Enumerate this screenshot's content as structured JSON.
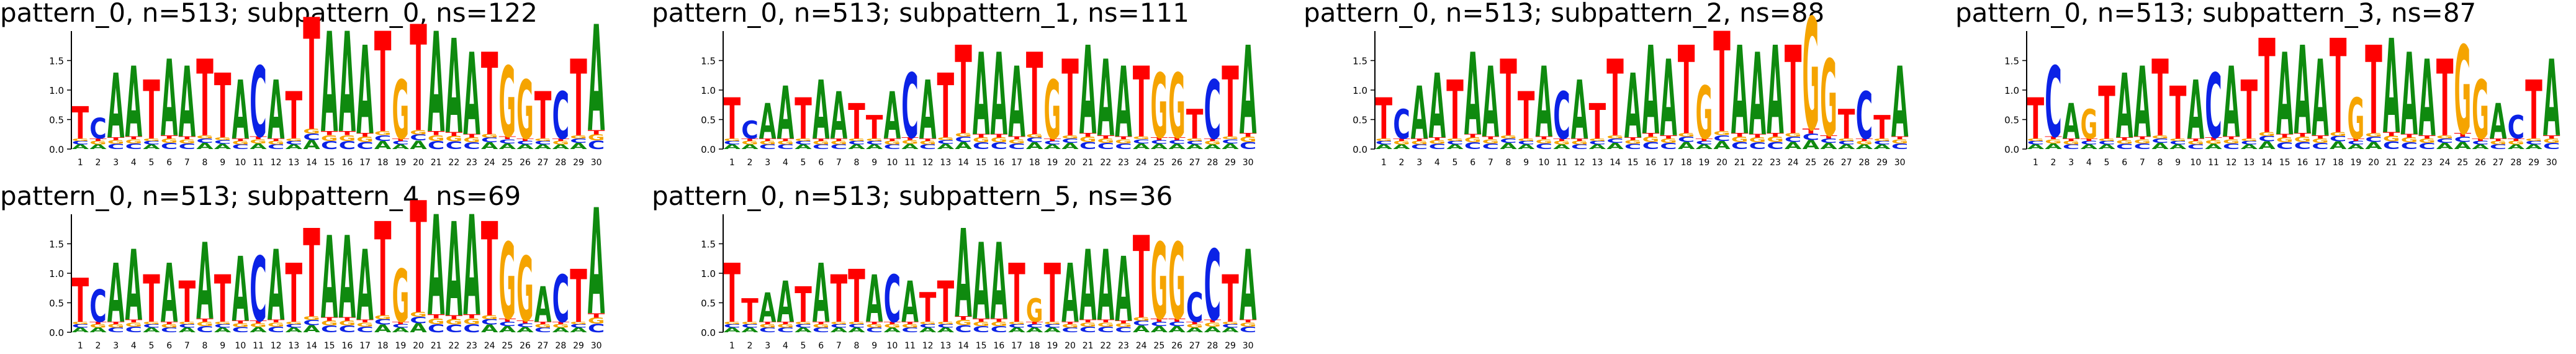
{
  "chart_data": [
    {
      "type": "sequence-logo",
      "title": "pattern_0, n=513; subpattern_0, ns=122",
      "ylim": [
        0,
        2.0
      ],
      "yticks": [
        "0.0",
        "0.5",
        "1.0",
        "1.5"
      ],
      "positions": [
        "1",
        "2",
        "3",
        "4",
        "5",
        "6",
        "7",
        "8",
        "9",
        "10",
        "11",
        "12",
        "13",
        "14",
        "15",
        "16",
        "17",
        "18",
        "19",
        "20",
        "21",
        "22",
        "23",
        "24",
        "25",
        "26",
        "27",
        "28",
        "29",
        "30"
      ],
      "consensus": [
        "T",
        "C",
        "A",
        "A",
        "T",
        "A",
        "A",
        "T",
        "T",
        "A",
        "C",
        "A",
        "T",
        "T",
        "A",
        "A",
        "A",
        "T",
        "G",
        "T",
        "A",
        "A",
        "A",
        "T",
        "G",
        "G",
        "T",
        "C",
        "T",
        "A"
      ],
      "heights": [
        0.55,
        0.35,
        1.1,
        1.2,
        1.0,
        1.3,
        1.2,
        1.3,
        1.1,
        1.0,
        1.2,
        1.0,
        0.8,
        1.9,
        1.7,
        1.7,
        1.5,
        1.7,
        1.0,
        1.8,
        1.7,
        1.6,
        1.4,
        1.4,
        1.2,
        1.0,
        0.8,
        0.8,
        1.3,
        1.8
      ]
    },
    {
      "type": "sequence-logo",
      "title": "pattern_0, n=513; subpattern_1, ns=111",
      "ylim": [
        0,
        2.0
      ],
      "yticks": [
        "0.0",
        "0.5",
        "1.0",
        "1.5"
      ],
      "positions": [
        "1",
        "2",
        "3",
        "4",
        "5",
        "6",
        "7",
        "8",
        "9",
        "10",
        "11",
        "12",
        "13",
        "14",
        "15",
        "16",
        "17",
        "18",
        "19",
        "20",
        "21",
        "22",
        "23",
        "24",
        "25",
        "26",
        "27",
        "28",
        "29",
        "30"
      ],
      "consensus": [
        "T",
        "C",
        "A",
        "A",
        "T",
        "A",
        "A",
        "T",
        "T",
        "A",
        "C",
        "A",
        "T",
        "T",
        "A",
        "A",
        "A",
        "T",
        "G",
        "T",
        "A",
        "A",
        "A",
        "T",
        "G",
        "G",
        "T",
        "C",
        "T",
        "A"
      ],
      "heights": [
        0.7,
        0.3,
        0.6,
        0.9,
        0.7,
        1.0,
        0.8,
        0.6,
        0.4,
        0.8,
        1.1,
        1.0,
        1.1,
        1.5,
        1.4,
        1.4,
        1.2,
        1.4,
        1.0,
        1.3,
        1.5,
        1.3,
        1.2,
        1.2,
        1.1,
        1.1,
        0.5,
        1.0,
        1.2,
        1.5
      ]
    },
    {
      "type": "sequence-logo",
      "title": "pattern_0, n=513; subpattern_2, ns=88",
      "ylim": [
        0,
        2.0
      ],
      "yticks": [
        "0.0",
        "0.5",
        "1.0",
        "1.5"
      ],
      "positions": [
        "1",
        "2",
        "3",
        "4",
        "5",
        "6",
        "7",
        "8",
        "9",
        "10",
        "11",
        "12",
        "13",
        "14",
        "15",
        "16",
        "17",
        "18",
        "19",
        "20",
        "21",
        "22",
        "23",
        "24",
        "25",
        "26",
        "27",
        "28",
        "29",
        "30"
      ],
      "consensus": [
        "T",
        "C",
        "A",
        "A",
        "T",
        "A",
        "A",
        "T",
        "T",
        "A",
        "C",
        "A",
        "T",
        "T",
        "A",
        "A",
        "A",
        "T",
        "G",
        "T",
        "A",
        "A",
        "A",
        "T",
        "G",
        "G",
        "T",
        "C",
        "T",
        "A"
      ],
      "heights": [
        0.7,
        0.5,
        0.9,
        1.1,
        1.0,
        1.4,
        1.2,
        1.3,
        0.8,
        1.2,
        0.8,
        1.0,
        0.6,
        1.3,
        1.1,
        1.5,
        1.3,
        1.5,
        0.9,
        1.7,
        1.5,
        1.4,
        1.5,
        1.5,
        1.9,
        1.3,
        0.5,
        0.8,
        0.4,
        1.2
      ]
    },
    {
      "type": "sequence-logo",
      "title": "pattern_0, n=513; subpattern_3, ns=87",
      "ylim": [
        0,
        2.0
      ],
      "yticks": [
        "0.0",
        "0.5",
        "1.0",
        "1.5"
      ],
      "positions": [
        "1",
        "2",
        "3",
        "4",
        "5",
        "6",
        "7",
        "8",
        "9",
        "10",
        "11",
        "12",
        "13",
        "14",
        "15",
        "16",
        "17",
        "18",
        "19",
        "20",
        "21",
        "22",
        "23",
        "24",
        "25",
        "26",
        "27",
        "28",
        "29",
        "30"
      ],
      "consensus": [
        "T",
        "C",
        "A",
        "G",
        "T",
        "A",
        "A",
        "T",
        "T",
        "A",
        "C",
        "A",
        "T",
        "T",
        "A",
        "A",
        "A",
        "T",
        "G",
        "T",
        "A",
        "A",
        "A",
        "T",
        "G",
        "G",
        "A",
        "C",
        "T",
        "A"
      ],
      "heights": [
        0.7,
        1.2,
        0.6,
        0.5,
        0.9,
        1.1,
        1.2,
        1.3,
        0.9,
        1.0,
        1.1,
        1.2,
        1.0,
        1.6,
        1.4,
        1.5,
        1.3,
        1.6,
        0.7,
        1.5,
        1.6,
        1.4,
        1.3,
        1.3,
        1.5,
        1.0,
        0.6,
        0.4,
        1.0,
        1.3
      ]
    },
    {
      "type": "sequence-logo",
      "title": "pattern_0, n=513; subpattern_4, ns=69",
      "ylim": [
        0,
        2.0
      ],
      "yticks": [
        "0.0",
        "0.5",
        "1.0",
        "1.5"
      ],
      "positions": [
        "1",
        "2",
        "3",
        "4",
        "5",
        "6",
        "7",
        "8",
        "9",
        "10",
        "11",
        "12",
        "13",
        "14",
        "15",
        "16",
        "17",
        "18",
        "19",
        "20",
        "21",
        "22",
        "23",
        "24",
        "25",
        "26",
        "27",
        "28",
        "29",
        "30"
      ],
      "consensus": [
        "T",
        "C",
        "A",
        "A",
        "T",
        "A",
        "T",
        "A",
        "T",
        "A",
        "C",
        "A",
        "T",
        "T",
        "A",
        "A",
        "A",
        "T",
        "G",
        "T",
        "A",
        "A",
        "A",
        "T",
        "G",
        "G",
        "A",
        "C",
        "T",
        "A"
      ],
      "heights": [
        0.75,
        0.55,
        1.0,
        1.2,
        0.8,
        1.0,
        0.7,
        1.3,
        0.8,
        1.1,
        1.1,
        1.2,
        1.0,
        1.5,
        1.4,
        1.4,
        1.2,
        1.6,
        0.9,
        1.9,
        1.7,
        1.6,
        1.7,
        1.6,
        1.3,
        1.1,
        0.6,
        0.8,
        0.9,
        1.8
      ]
    },
    {
      "type": "sequence-logo",
      "title": "pattern_0, n=513; subpattern_5, ns=36",
      "ylim": [
        0,
        2.0
      ],
      "yticks": [
        "0.0",
        "0.5",
        "1.0",
        "1.5"
      ],
      "positions": [
        "1",
        "2",
        "3",
        "4",
        "5",
        "6",
        "7",
        "8",
        "9",
        "10",
        "11",
        "12",
        "13",
        "14",
        "15",
        "16",
        "17",
        "18",
        "19",
        "20",
        "21",
        "22",
        "23",
        "24",
        "25",
        "26",
        "27",
        "28",
        "29",
        "30"
      ],
      "consensus": [
        "T",
        "T",
        "A",
        "A",
        "T",
        "A",
        "T",
        "T",
        "A",
        "C",
        "A",
        "T",
        "T",
        "A",
        "A",
        "A",
        "T",
        "G",
        "T",
        "A",
        "A",
        "A",
        "A",
        "T",
        "G",
        "G",
        "C",
        "C",
        "T",
        "A"
      ],
      "heights": [
        1.0,
        0.4,
        0.5,
        0.7,
        0.6,
        1.0,
        0.8,
        0.9,
        0.8,
        0.8,
        0.7,
        0.5,
        0.7,
        1.5,
        1.3,
        1.3,
        1.0,
        0.4,
        1.0,
        1.0,
        1.2,
        1.2,
        1.1,
        1.4,
        1.3,
        1.3,
        0.5,
        1.2,
        0.8,
        1.2
      ]
    }
  ],
  "colors": {
    "A": "#0f8a0f",
    "C": "#0b22e6",
    "G": "#f5a400",
    "T": "#ff0000"
  }
}
